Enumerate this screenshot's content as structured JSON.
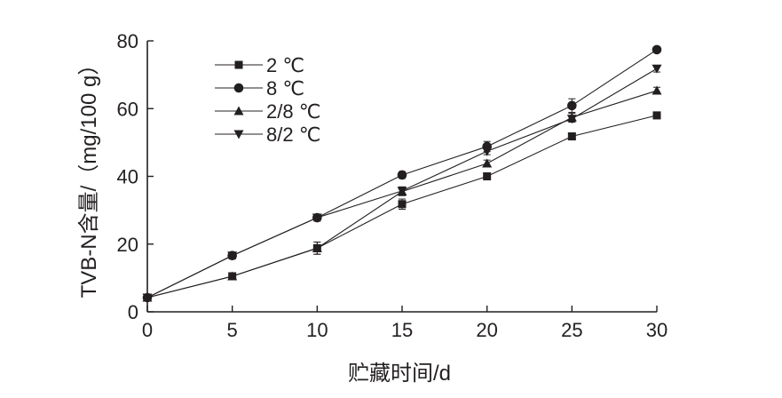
{
  "chart_data": {
    "type": "line",
    "title": "",
    "xlabel": "贮藏时间/d",
    "ylabel": "TVB-N含量/（mg/100 g）",
    "x": [
      0,
      5,
      10,
      15,
      20,
      25,
      30
    ],
    "xlim": [
      0,
      30
    ],
    "ylim": [
      0,
      80
    ],
    "xticks": [
      "0",
      "5",
      "10",
      "15",
      "20",
      "25",
      "30"
    ],
    "yticks": [
      "0",
      "20",
      "40",
      "60",
      "80"
    ],
    "grid": false,
    "legend_position": "top-left",
    "series": [
      {
        "name": "2 ℃",
        "marker": "square",
        "values": [
          4.2,
          10.5,
          18.8,
          31.8,
          40.0,
          51.8,
          58.0
        ],
        "errors": [
          0.5,
          1.0,
          1.8,
          1.5,
          1.0,
          1.0,
          1.0
        ]
      },
      {
        "name": "8 ℃",
        "marker": "circle",
        "values": [
          4.2,
          16.6,
          27.8,
          40.4,
          48.8,
          60.9,
          77.4
        ],
        "errors": [
          0.5,
          1.0,
          1.0,
          1.0,
          1.5,
          2.0,
          0.8
        ]
      },
      {
        "name": "2/8 ℃",
        "marker": "triangle-up",
        "values": [
          4.2,
          10.5,
          18.8,
          35.5,
          43.8,
          57.4,
          65.3
        ],
        "errors": [
          0.5,
          1.0,
          1.8,
          1.2,
          1.0,
          1.2,
          1.0
        ]
      },
      {
        "name": "8/2 ℃",
        "marker": "triangle-down",
        "values": [
          4.2,
          16.6,
          27.8,
          35.7,
          47.4,
          57.0,
          71.8
        ],
        "errors": [
          0.5,
          1.0,
          1.0,
          1.2,
          1.0,
          1.0,
          1.0
        ]
      }
    ]
  }
}
